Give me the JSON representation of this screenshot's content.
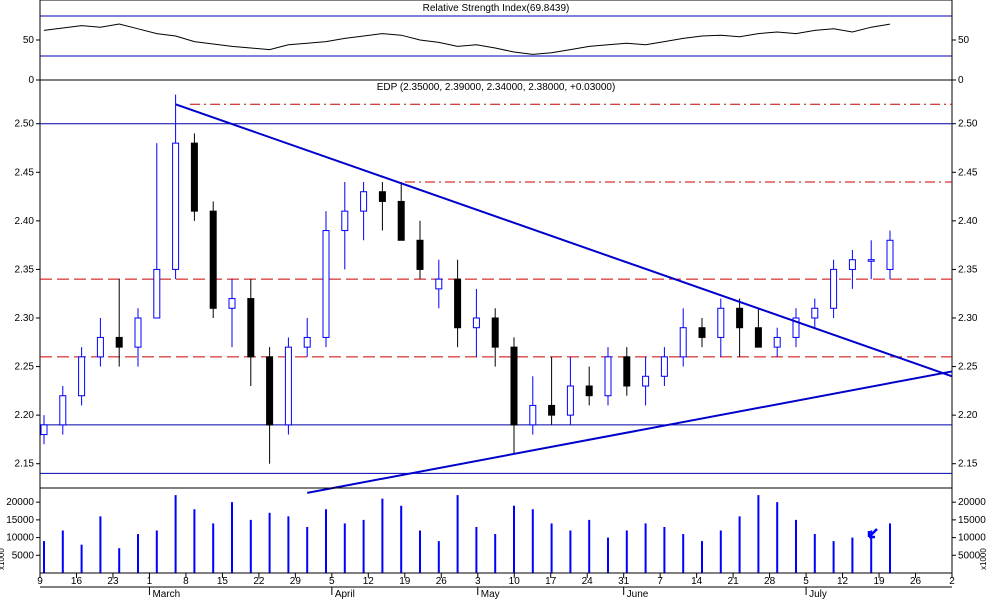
{
  "rsi_panel": {
    "title": "Relative Strength Index(69.8439)",
    "ticks": [
      {
        "v": 0,
        "label": "0"
      },
      {
        "v": 50,
        "label": "50"
      }
    ],
    "upper_level": 80,
    "lower_level": 20,
    "ylim": [
      0,
      100
    ]
  },
  "price_panel": {
    "title": "EDP (2.35000, 2.39000, 2.34000, 2.38000, +0.03000)",
    "ticks": [
      "2.15",
      "2.20",
      "2.25",
      "2.30",
      "2.35",
      "2.40",
      "2.45",
      "2.50"
    ],
    "ylim": [
      2.125,
      2.545
    ]
  },
  "volume_panel": {
    "ticks": [
      {
        "v": 5000,
        "label": "5000"
      },
      {
        "v": 10000,
        "label": "10000"
      },
      {
        "v": 15000,
        "label": "15000"
      },
      {
        "v": 20000,
        "label": "20000"
      }
    ],
    "unit_label": "x1000",
    "ylim": [
      0,
      24000
    ]
  },
  "x_axis": {
    "day_labels": [
      "9",
      "16",
      "23",
      "1",
      "8",
      "15",
      "22",
      "29",
      "5",
      "12",
      "19",
      "26",
      "3",
      "10",
      "17",
      "24",
      "31",
      "7",
      "14",
      "21",
      "28",
      "5",
      "12",
      "19",
      "26",
      "2"
    ],
    "month_labels": [
      {
        "label": "March",
        "day_index": 3
      },
      {
        "label": "April",
        "day_index": 8
      },
      {
        "label": "May",
        "day_index": 12
      },
      {
        "label": "June",
        "day_index": 16
      },
      {
        "label": "July",
        "day_index": 21
      }
    ]
  },
  "colors": {
    "up_candle": "#0000ff",
    "down_candle": "#000000",
    "trendline": "#0000cc",
    "support_dashed": "#cc0000",
    "resistance_dashdot": "#cc0000",
    "horizontal_line": "#0000aa",
    "volume_bar": "#0000ff"
  },
  "chart_data": {
    "type": "candlestick",
    "x": [
      "Feb 9",
      "Feb 12",
      "Feb 16",
      "Feb 19",
      "Feb 23",
      "Feb 26",
      "Mar 1",
      "Mar 4",
      "Mar 8",
      "Mar 11",
      "Mar 15",
      "Mar 18",
      "Mar 22",
      "Mar 25",
      "Mar 29",
      "Apr 1",
      "Apr 5",
      "Apr 8",
      "Apr 12",
      "Apr 15",
      "Apr 19",
      "Apr 22",
      "Apr 26",
      "Apr 29",
      "May 3",
      "May 6",
      "May 10",
      "May 13",
      "May 17",
      "May 20",
      "May 24",
      "May 27",
      "May 31",
      "Jun 3",
      "Jun 7",
      "Jun 10",
      "Jun 14",
      "Jun 17",
      "Jun 21",
      "Jun 24",
      "Jun 28",
      "Jul 1",
      "Jul 5",
      "Jul 8",
      "Jul 12",
      "Jul 15"
    ],
    "ohlc": [
      [
        2.18,
        2.2,
        2.17,
        2.19
      ],
      [
        2.19,
        2.23,
        2.18,
        2.22
      ],
      [
        2.22,
        2.27,
        2.21,
        2.26
      ],
      [
        2.26,
        2.3,
        2.25,
        2.28
      ],
      [
        2.28,
        2.34,
        2.25,
        2.27
      ],
      [
        2.27,
        2.31,
        2.25,
        2.3
      ],
      [
        2.3,
        2.48,
        2.3,
        2.35
      ],
      [
        2.35,
        2.53,
        2.34,
        2.48
      ],
      [
        2.48,
        2.49,
        2.4,
        2.41
      ],
      [
        2.41,
        2.42,
        2.3,
        2.31
      ],
      [
        2.31,
        2.34,
        2.27,
        2.32
      ],
      [
        2.32,
        2.34,
        2.23,
        2.26
      ],
      [
        2.26,
        2.27,
        2.15,
        2.19
      ],
      [
        2.19,
        2.28,
        2.18,
        2.27
      ],
      [
        2.27,
        2.3,
        2.26,
        2.28
      ],
      [
        2.28,
        2.41,
        2.27,
        2.39
      ],
      [
        2.39,
        2.44,
        2.35,
        2.41
      ],
      [
        2.41,
        2.44,
        2.38,
        2.43
      ],
      [
        2.43,
        2.44,
        2.39,
        2.42
      ],
      [
        2.42,
        2.44,
        2.38,
        2.38
      ],
      [
        2.38,
        2.4,
        2.34,
        2.35
      ],
      [
        2.33,
        2.36,
        2.31,
        2.34
      ],
      [
        2.34,
        2.36,
        2.27,
        2.29
      ],
      [
        2.29,
        2.33,
        2.26,
        2.3
      ],
      [
        2.3,
        2.31,
        2.25,
        2.27
      ],
      [
        2.27,
        2.28,
        2.16,
        2.19
      ],
      [
        2.19,
        2.24,
        2.18,
        2.21
      ],
      [
        2.21,
        2.26,
        2.19,
        2.2
      ],
      [
        2.2,
        2.26,
        2.19,
        2.23
      ],
      [
        2.23,
        2.25,
        2.21,
        2.22
      ],
      [
        2.22,
        2.27,
        2.21,
        2.26
      ],
      [
        2.26,
        2.27,
        2.22,
        2.23
      ],
      [
        2.23,
        2.26,
        2.21,
        2.24
      ],
      [
        2.24,
        2.27,
        2.23,
        2.26
      ],
      [
        2.26,
        2.31,
        2.25,
        2.29
      ],
      [
        2.29,
        2.3,
        2.27,
        2.28
      ],
      [
        2.28,
        2.32,
        2.26,
        2.31
      ],
      [
        2.31,
        2.32,
        2.26,
        2.29
      ],
      [
        2.29,
        2.31,
        2.27,
        2.27
      ],
      [
        2.27,
        2.29,
        2.26,
        2.28
      ],
      [
        2.28,
        2.31,
        2.27,
        2.3
      ],
      [
        2.3,
        2.32,
        2.29,
        2.31
      ],
      [
        2.31,
        2.36,
        2.3,
        2.35
      ],
      [
        2.35,
        2.37,
        2.33,
        2.36
      ],
      [
        2.36,
        2.38,
        2.34,
        2.36
      ],
      [
        2.35,
        2.39,
        2.34,
        2.38
      ]
    ],
    "rsi": [
      62,
      65,
      68,
      66,
      70,
      64,
      58,
      55,
      48,
      45,
      42,
      40,
      38,
      44,
      46,
      48,
      52,
      55,
      58,
      56,
      50,
      47,
      42,
      44,
      40,
      35,
      32,
      34,
      38,
      42,
      44,
      46,
      44,
      48,
      52,
      55,
      56,
      54,
      58,
      60,
      58,
      62,
      64,
      60,
      66,
      69.8439
    ],
    "volume": [
      9000,
      12000,
      8000,
      16000,
      7000,
      11000,
      12000,
      22000,
      18000,
      14000,
      20000,
      15000,
      17000,
      16000,
      13000,
      18000,
      14000,
      15000,
      21000,
      19000,
      12000,
      9000,
      22000,
      13000,
      11000,
      19000,
      18000,
      14000,
      12000,
      15000,
      10000,
      12000,
      14000,
      13000,
      11000,
      9000,
      12000,
      16000,
      22000,
      20000,
      15000,
      11000,
      9000,
      10000,
      12000,
      14000
    ],
    "trendlines": [
      {
        "name": "descending resistance",
        "from": [
          "Mar 4",
          2.52
        ],
        "to": [
          "Aug 2",
          2.24
        ]
      },
      {
        "name": "ascending support",
        "from": [
          "Mar 29",
          2.12
        ],
        "to": [
          "Aug 2",
          2.245
        ]
      }
    ],
    "horizontal_levels": [
      {
        "value": 2.52,
        "style": "dashdot"
      },
      {
        "value": 2.44,
        "style": "dashdot"
      },
      {
        "value": 2.34,
        "style": "dashed"
      },
      {
        "value": 2.26,
        "style": "dashed"
      },
      {
        "value": 2.5,
        "style": "solid"
      },
      {
        "value": 2.19,
        "style": "solid"
      },
      {
        "value": 2.14,
        "style": "solid"
      }
    ],
    "title": "EDP (2.35000, 2.39000, 2.34000, 2.38000, +0.03000)",
    "grid": false,
    "legend": "none"
  }
}
